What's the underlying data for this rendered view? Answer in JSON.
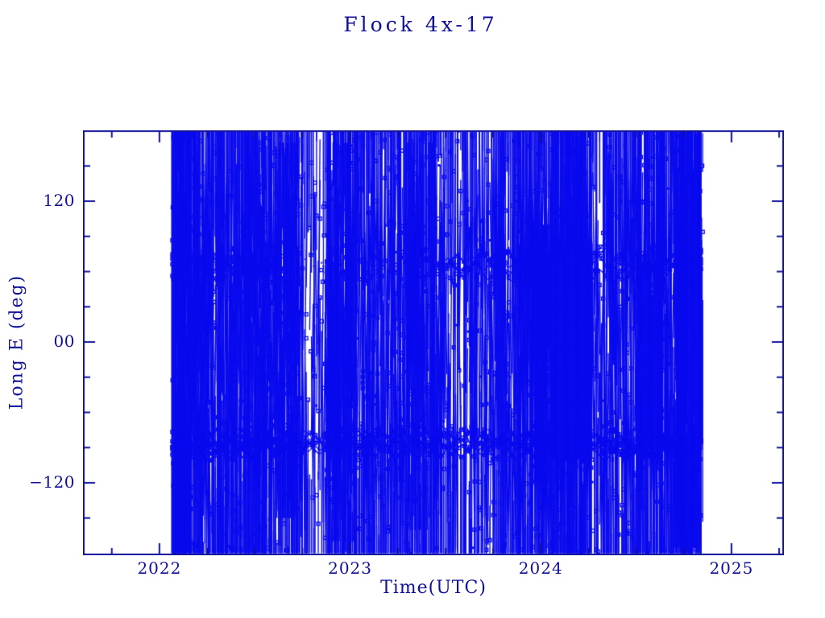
{
  "chart_data": {
    "type": "line",
    "title": "Flock 4x-17",
    "xlabel": "Time(UTC)",
    "ylabel": "Long E (deg)",
    "xlim": [
      2021.599,
      2025.275
    ],
    "ylim": [
      -181.8,
      180.4
    ],
    "grid": false,
    "legend": "none",
    "marker": "open-square",
    "x_ticks_major": [
      {
        "value": 2022,
        "label": "2022"
      },
      {
        "value": 2023,
        "label": "2023"
      },
      {
        "value": 2024,
        "label": "2024"
      },
      {
        "value": 2025,
        "label": "2025"
      }
    ],
    "x_minor_step": 0.25,
    "y_ticks_major": [
      {
        "value": 120,
        "label": "120"
      },
      {
        "value": 0,
        "label": "00"
      },
      {
        "value": -120,
        "label": "−120"
      }
    ],
    "y_minor_step": 30,
    "colors": {
      "ink": "#10109a",
      "data": "#0a0aee",
      "background": "#ffffff"
    },
    "series_summary": {
      "description": "Sub-satellite east longitude vs time for the Flock 4x-17 satellite; thousands of samples wrap around +/-180 deg producing dense vertical connecting lines with small open-square markers. Data runs from about 2022.07 to 2024.84.",
      "data_time_range": [
        2022.068,
        2024.842
      ],
      "longitude_range": [
        -180,
        180
      ],
      "dense_bands_deg": [
        -87,
        65
      ],
      "coverage": "full -180..180 wrap-around scatter with horizontal marker bands near -87 deg (entire span) and +65 deg (early 2022 and late 2023 through late 2024)"
    },
    "synthesis": {
      "seed": 1337,
      "t_start": 2022.068,
      "t_end": 2024.842,
      "density": {
        "t0": 2022.0,
        "step": 0.125,
        "values": [
          1.7,
          1.25,
          1.05,
          1.15,
          1.0,
          0.85,
          0.5,
          1.0,
          1.05,
          0.9,
          1.05,
          1.0,
          0.45,
          0.7,
          1.0,
          1.1,
          1.35,
          1.5,
          0.7,
          1.0,
          1.25,
          1.1,
          1.55
        ]
      },
      "fast_tracks": {
        "count": 16,
        "dt": 0.009,
        "draw_prob": 0.5,
        "marker_prob": 0.16
      },
      "wrap_lines": 300,
      "bands": [
        {
          "name": "band-minus-87",
          "center": -87,
          "spread": [
            -6,
            -3,
            -0.5,
            2,
            4.5,
            6.5
          ],
          "festoon_amp": 4.5,
          "festoon_period": 0.115,
          "slow_amp": 4,
          "slow_period": 2.0,
          "dt": 0.005,
          "marker_every": 3,
          "marker_prob": 0.65,
          "windows": [
            [
              2022.068,
              2024.842,
              1.0
            ]
          ]
        },
        {
          "name": "band-plus-65",
          "center": 65,
          "spread": [
            -4,
            0,
            3,
            6
          ],
          "festoon_amp": 6,
          "festoon_period": 0.13,
          "slow_amp": 6,
          "slow_period": 2.4,
          "dt": 0.006,
          "marker_every": 3,
          "marker_prob": 0.6,
          "windows": [
            [
              2022.068,
              2022.63,
              1.0
            ],
            [
              2022.63,
              2023.5,
              0.22
            ],
            [
              2023.5,
              2024.842,
              1.0
            ]
          ]
        }
      ],
      "blobs": [
        {
          "t0": 2022.068,
          "t1": 2022.19,
          "lmin": -180,
          "lmax": 180,
          "n": 170
        },
        {
          "t0": 2022.42,
          "t1": 2022.56,
          "lmin": -180,
          "lmax": 175,
          "n": 85
        },
        {
          "t0": 2022.6,
          "t1": 2022.72,
          "lmin": -150,
          "lmax": 170,
          "n": 70
        },
        {
          "t0": 2022.88,
          "t1": 2023.02,
          "lmin": -170,
          "lmax": 170,
          "n": 85
        },
        {
          "t0": 2023.3,
          "t1": 2023.46,
          "lmin": -160,
          "lmax": 170,
          "n": 80
        },
        {
          "t0": 2023.95,
          "t1": 2024.05,
          "lmin": -120,
          "lmax": 100,
          "n": 90
        },
        {
          "t0": 2024.05,
          "t1": 2024.27,
          "lmin": -100,
          "lmax": 85,
          "n": 210
        },
        {
          "t0": 2024.5,
          "t1": 2024.64,
          "lmin": -100,
          "lmax": 70,
          "n": 140
        },
        {
          "t0": 2024.7,
          "t1": 2024.85,
          "lmin": -175,
          "lmax": 178,
          "n": 190
        }
      ],
      "solid_columns": [
        {
          "t": 2022.072,
          "w": 5,
          "lmin": -180,
          "lmax": 180
        },
        {
          "t": 2022.31,
          "w": 3,
          "lmin": -160,
          "lmax": 170
        },
        {
          "t": 2022.405,
          "w": 3,
          "lmin": -180,
          "lmax": 150
        },
        {
          "t": 2022.655,
          "w": 3,
          "lmin": -140,
          "lmax": 160
        },
        {
          "t": 2023.42,
          "w": 3,
          "lmin": -150,
          "lmax": 165
        },
        {
          "t": 2023.88,
          "w": 3,
          "lmin": -130,
          "lmax": 120
        },
        {
          "t": 2024.1,
          "w": 6,
          "lmin": -100,
          "lmax": 75
        },
        {
          "t": 2024.165,
          "w": 5,
          "lmin": -98,
          "lmax": 80
        },
        {
          "t": 2024.215,
          "w": 4,
          "lmin": -100,
          "lmax": 70
        },
        {
          "t": 2024.55,
          "w": 5,
          "lmin": -95,
          "lmax": 55
        },
        {
          "t": 2024.6,
          "w": 4,
          "lmin": -95,
          "lmax": 60
        },
        {
          "t": 2024.78,
          "w": 5,
          "lmin": -178,
          "lmax": 178
        },
        {
          "t": 2024.815,
          "w": 4,
          "lmin": -170,
          "lmax": 175
        }
      ],
      "scatter_markers": {
        "count": 950,
        "band_fracs": [
          0.28,
          0.18
        ],
        "open_size": 4,
        "filled_size": 3,
        "filled_frac": 0.22
      }
    }
  }
}
